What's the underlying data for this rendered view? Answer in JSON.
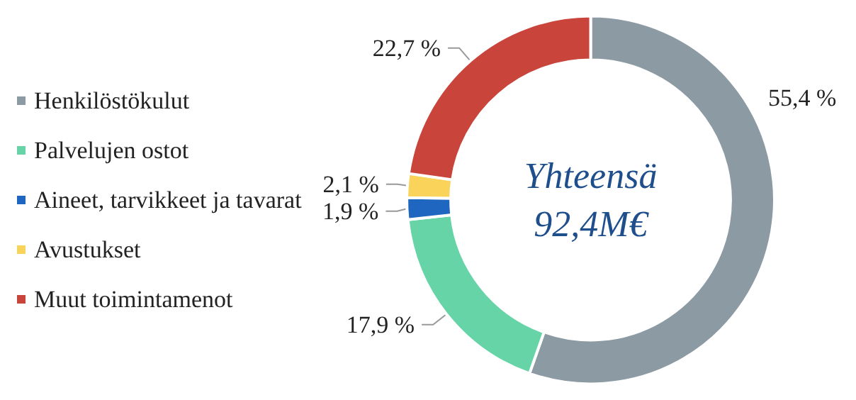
{
  "chart_data": {
    "type": "donut",
    "categories": [
      "Henkilöstökulut",
      "Palvelujen ostot",
      "Aineet, tarvikkeet ja tavarat",
      "Avustukset",
      "Muut toimintamenot"
    ],
    "values": [
      55.4,
      17.9,
      1.9,
      2.1,
      22.7
    ],
    "colors": [
      "#8c9aa3",
      "#66d4a6",
      "#1f66c0",
      "#f9d35a",
      "#c9443a"
    ],
    "value_labels": [
      "55,4 %",
      "17,9 %",
      "1,9 %",
      "2,1 %",
      "22,7 %"
    ],
    "annotations": [
      "Yhteensä\n92,4M€"
    ],
    "legend": "left"
  }
}
